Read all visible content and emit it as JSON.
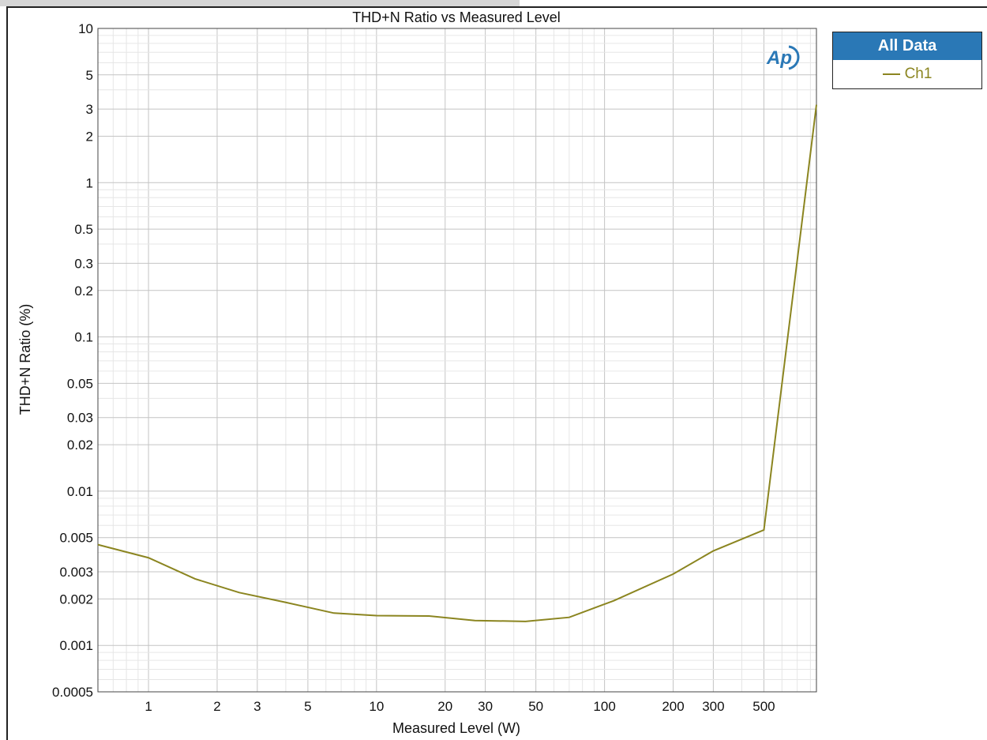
{
  "window": {
    "title": "THD+N Ratio vs Measured Level"
  },
  "legend": {
    "header": "All Data",
    "items": [
      {
        "label": "Ch1",
        "color": "#8b8520"
      }
    ]
  },
  "logo": {
    "text": "Ap"
  },
  "chart_data": {
    "type": "line",
    "title": "THD+N Ratio vs Measured Level",
    "xlabel": "Measured Level (W)",
    "ylabel": "THD+N Ratio (%)",
    "xscale": "log",
    "yscale": "log",
    "xlim": [
      0.6,
      850
    ],
    "ylim": [
      0.0005,
      10
    ],
    "grid": true,
    "legend_position": "outside-top-right",
    "x_ticks": [
      1,
      2,
      3,
      5,
      10,
      20,
      30,
      50,
      100,
      200,
      300,
      500
    ],
    "x_tick_labels": [
      "1",
      "2",
      "3",
      "5",
      "10",
      "20",
      "30",
      "50",
      "100",
      "200",
      "300",
      "500"
    ],
    "y_ticks": [
      10,
      5,
      3,
      2,
      1,
      0.5,
      0.3,
      0.2,
      0.1,
      0.05,
      0.03,
      0.02,
      0.01,
      0.005,
      0.003,
      0.002,
      0.001,
      0.0005
    ],
    "y_tick_labels": [
      "10",
      "5",
      "3",
      "2",
      "1",
      "0.5",
      "0.3",
      "0.2",
      "0.1",
      "0.05",
      "0.03",
      "0.02",
      "0.01",
      "0.005",
      "0.003",
      "0.002",
      "0.001",
      "0.0005"
    ],
    "series": [
      {
        "name": "Ch1",
        "color": "#8b8520",
        "x": [
          0.6,
          1.0,
          1.6,
          2.5,
          4.0,
          6.5,
          10,
          17,
          27,
          45,
          70,
          110,
          200,
          300,
          500,
          850
        ],
        "y": [
          0.0045,
          0.0037,
          0.0027,
          0.0022,
          0.0019,
          0.00162,
          0.00156,
          0.00155,
          0.00145,
          0.00143,
          0.00152,
          0.00195,
          0.0029,
          0.0041,
          0.0056,
          3.2
        ]
      }
    ]
  }
}
